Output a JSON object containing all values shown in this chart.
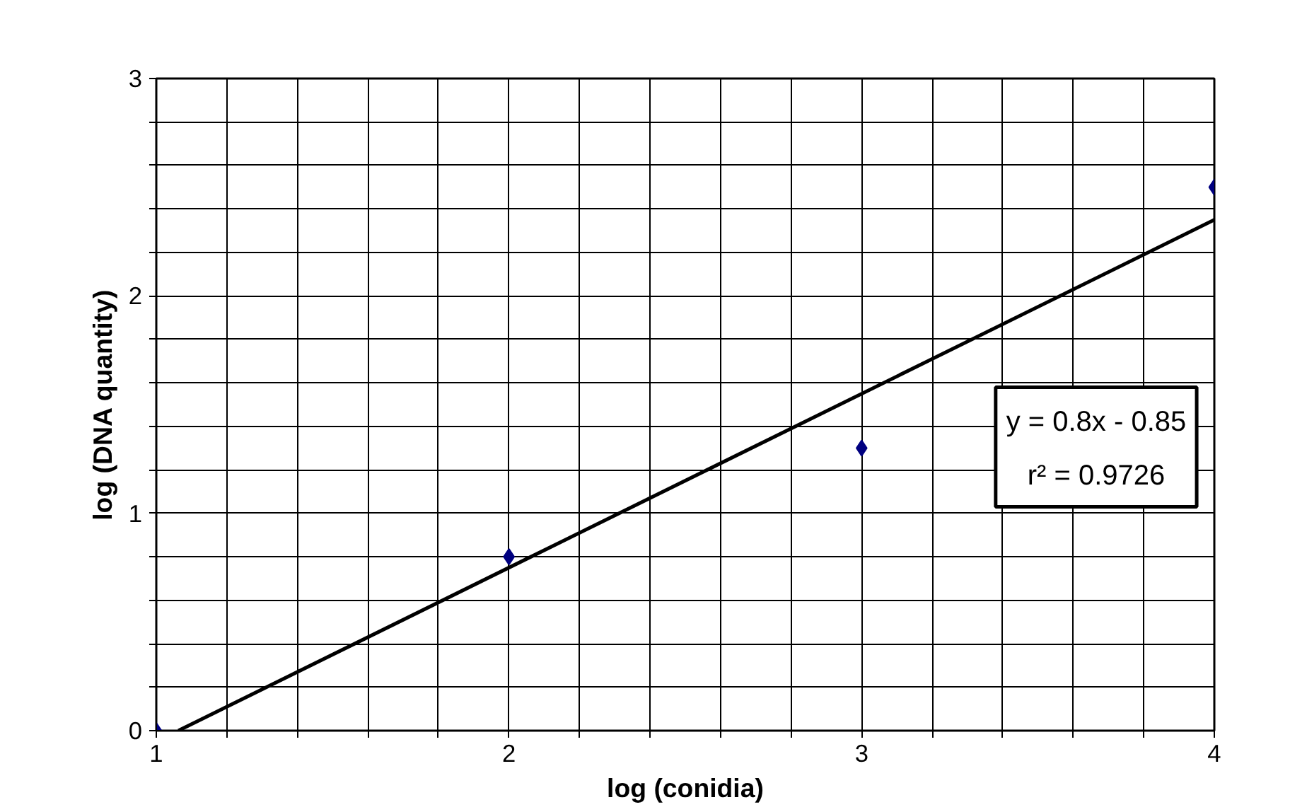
{
  "chart_data": {
    "type": "scatter",
    "xlabel": "log (conidia)",
    "ylabel": "log (DNA quantity)",
    "series": [
      {
        "color": "#000080",
        "marker": "diamond",
        "x": [
          1,
          2,
          3,
          4
        ],
        "values": [
          0,
          0.8,
          1.3,
          2.5
        ]
      },
      {
        "type": "line",
        "color": "#000000",
        "line_style": "solid",
        "x": [
          1.0625,
          4
        ],
        "values": [
          0,
          2.35
        ]
      }
    ],
    "xlim": [
      1,
      4
    ],
    "ylim": [
      0,
      3
    ],
    "xticks": [
      1,
      {
        "value": 1.2,
        "label": null
      },
      {
        "value": 1.4,
        "label": null
      },
      {
        "value": 1.6,
        "label": null
      },
      {
        "value": 1.8,
        "label": null
      },
      2,
      {
        "value": 2.2,
        "label": null
      },
      {
        "value": 2.4,
        "label": null
      },
      {
        "value": 2.6,
        "label": null
      },
      {
        "value": 2.8,
        "label": null
      },
      3,
      {
        "value": 3.2,
        "label": null
      },
      {
        "value": 3.4,
        "label": null
      },
      {
        "value": 3.6,
        "label": null
      },
      {
        "value": 3.8,
        "label": null
      },
      4
    ],
    "yticks": [
      0,
      {
        "value": 0.2,
        "label": null
      },
      {
        "value": 0.4,
        "label": null
      },
      {
        "value": 0.6,
        "label": null
      },
      {
        "value": 0.8,
        "label": null
      },
      1,
      {
        "value": 1.2,
        "label": null
      },
      {
        "value": 1.4,
        "label": null
      },
      {
        "value": 1.6,
        "label": null
      },
      {
        "value": 1.8,
        "label": null
      },
      2,
      {
        "value": 2.2,
        "label": null
      },
      {
        "value": 2.4,
        "label": null
      },
      {
        "value": 2.6,
        "label": null
      },
      {
        "value": 2.8,
        "label": null
      },
      3
    ],
    "grid": true,
    "annotations": [
      "y = 0.8x - 0.85",
      "r² = 0.9726"
    ]
  }
}
